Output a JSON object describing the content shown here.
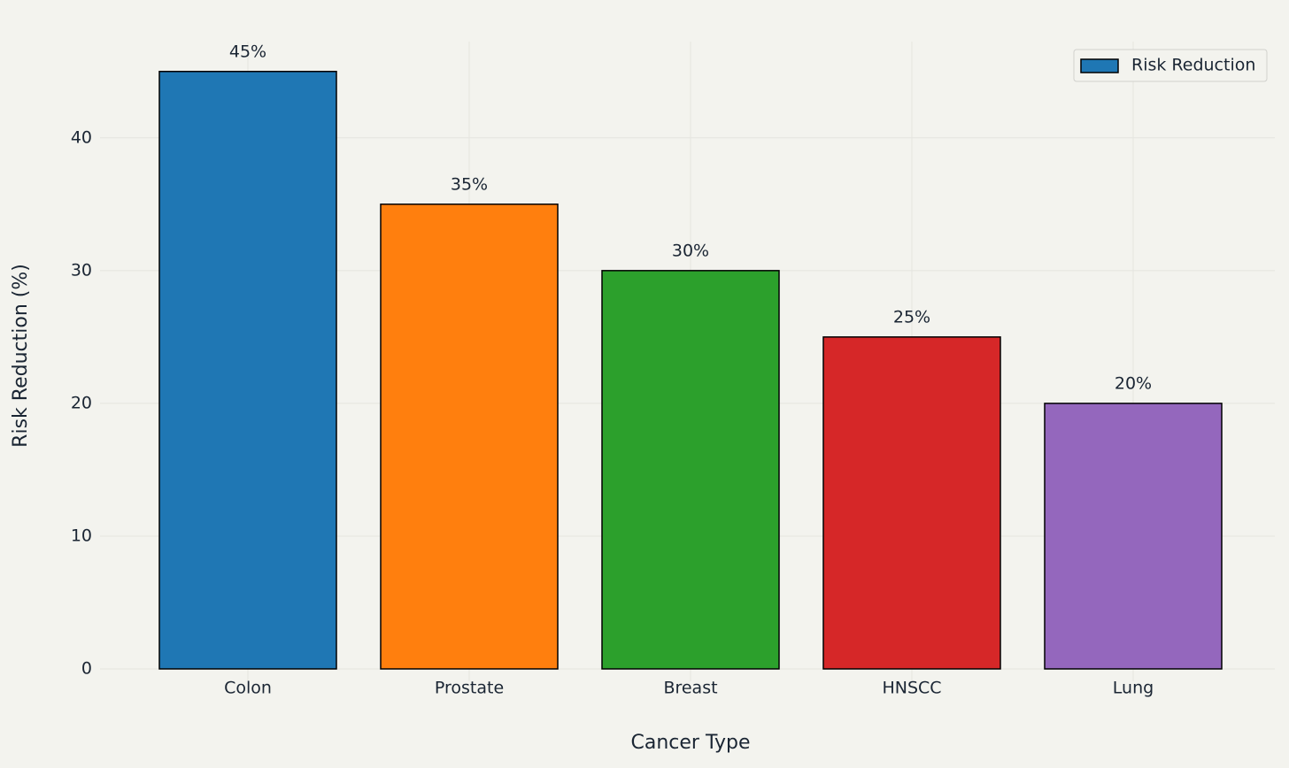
{
  "chart_data": {
    "type": "bar",
    "x_label": "Cancer Type",
    "y_label": "Risk Reduction (%)",
    "categories": [
      "Colon",
      "Prostate",
      "Breast",
      "HNSCC",
      "Lung"
    ],
    "series": [
      {
        "name": "Risk Reduction",
        "color": "#1f77b4",
        "colors": [
          "#1f77b4",
          "#ff7f0e",
          "#2ca02c",
          "#d62728",
          "#9467bd"
        ],
        "values": [
          45,
          35,
          30,
          25,
          20
        ],
        "value_labels": [
          "45%",
          "35%",
          "30%",
          "25%",
          "20%"
        ]
      }
    ],
    "ylim": [
      0,
      47.25
    ],
    "yticks": [
      0,
      10,
      20,
      30,
      40
    ],
    "grid": true,
    "legend": "upper right"
  }
}
